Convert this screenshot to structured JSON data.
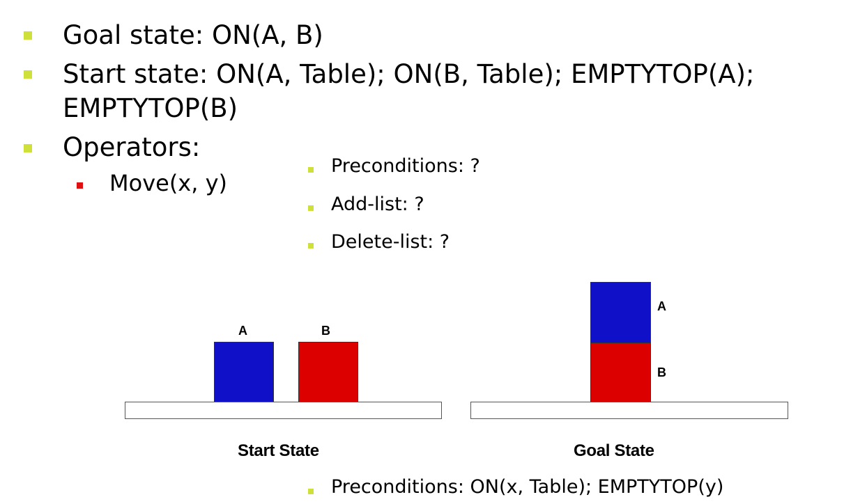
{
  "bullets": {
    "goal": "Goal state: ON(A, B)",
    "start_line1": "Start state: ON(A, Table); ON(B, Table); EMPTYTOP(A);",
    "start_line2": "EMPTYTOP(B)",
    "operators": "Operators:",
    "move": "Move(x, y)",
    "preconditions": "Preconditions: ?",
    "add_list": "Add-list: ?",
    "delete_list": "Delete-list: ?",
    "preconditions_answer": "Preconditions: ON(x, Table); EMPTYTOP(y)"
  },
  "diagram": {
    "start": {
      "caption": "Start State",
      "block_a_label": "A",
      "block_b_label": "B"
    },
    "goal": {
      "caption": "Goal State",
      "block_a_label": "A",
      "block_b_label": "B"
    },
    "colors": {
      "block_a": "#1010c8",
      "block_b": "#dd0000"
    }
  }
}
